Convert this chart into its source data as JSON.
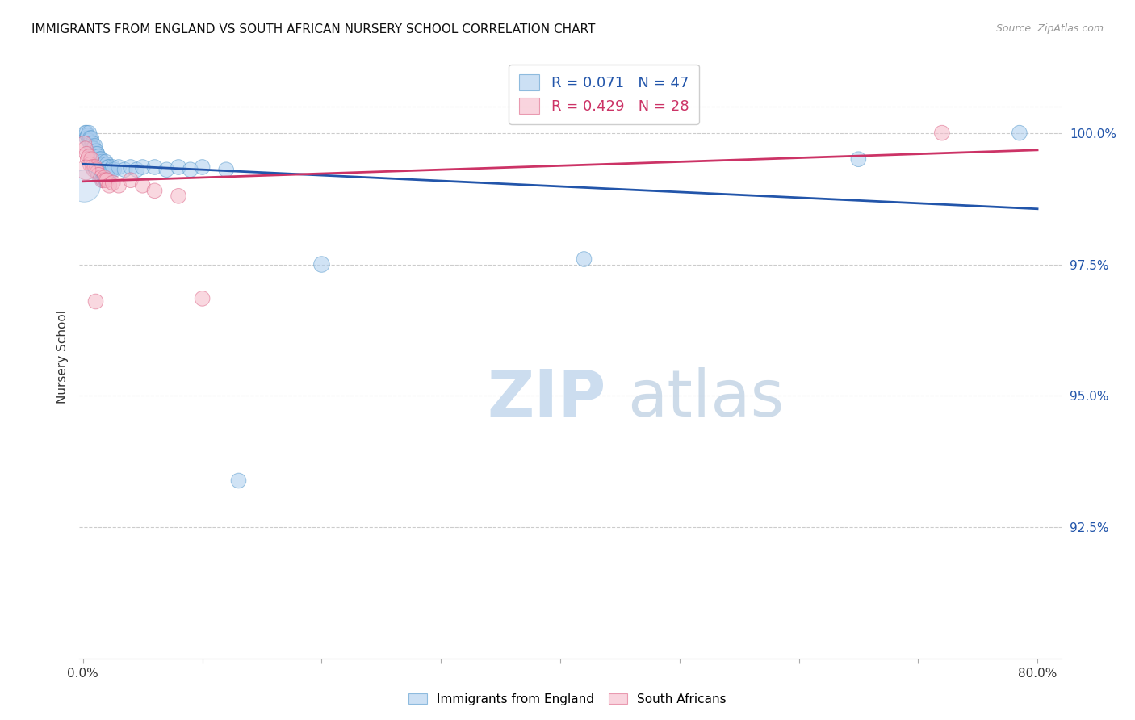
{
  "title": "IMMIGRANTS FROM ENGLAND VS SOUTH AFRICAN NURSERY SCHOOL CORRELATION CHART",
  "source": "Source: ZipAtlas.com",
  "ylabel": "Nursery School",
  "xlim": [
    -0.003,
    0.82
  ],
  "ylim": [
    90.0,
    101.5
  ],
  "yticks": [
    92.5,
    95.0,
    97.5,
    100.0
  ],
  "ytick_labels": [
    "92.5%",
    "95.0%",
    "97.5%",
    "100.0%"
  ],
  "xticks": [
    0.0,
    0.1,
    0.2,
    0.3,
    0.4,
    0.5,
    0.6,
    0.7,
    0.8
  ],
  "xtick_labels": [
    "0.0%",
    "",
    "",
    "",
    "",
    "",
    "",
    "",
    "80.0%"
  ],
  "blue_color": "#aaccee",
  "pink_color": "#f5b8c8",
  "blue_edge_color": "#5599cc",
  "pink_edge_color": "#dd6688",
  "blue_line_color": "#2255aa",
  "pink_line_color": "#cc3366",
  "blue_R": "0.071",
  "blue_N": "47",
  "pink_R": "0.429",
  "pink_N": "28",
  "grid_color": "#cccccc",
  "background_color": "#ffffff",
  "watermark_zip": "#ccddef",
  "watermark_atlas": "#b8cce0",
  "blue_x": [
    0.002,
    0.003,
    0.003,
    0.004,
    0.005,
    0.005,
    0.006,
    0.006,
    0.007,
    0.007,
    0.008,
    0.008,
    0.009,
    0.01,
    0.01,
    0.011,
    0.012,
    0.013,
    0.014,
    0.015,
    0.016,
    0.017,
    0.018,
    0.019,
    0.02,
    0.021,
    0.022,
    0.023,
    0.024,
    0.025,
    0.026,
    0.03,
    0.035,
    0.04,
    0.045,
    0.05,
    0.06,
    0.07,
    0.08,
    0.09,
    0.1,
    0.12,
    0.2,
    0.42,
    0.65,
    0.785
  ],
  "blue_y": [
    100.0,
    100.0,
    99.9,
    99.95,
    100.0,
    99.85,
    99.9,
    99.8,
    99.9,
    99.75,
    99.8,
    99.7,
    99.7,
    99.75,
    99.6,
    99.65,
    99.6,
    99.55,
    99.5,
    99.5,
    99.45,
    99.4,
    99.4,
    99.45,
    99.4,
    99.35,
    99.35,
    99.3,
    99.3,
    99.35,
    99.3,
    99.35,
    99.3,
    99.35,
    99.3,
    99.35,
    99.35,
    99.3,
    99.35,
    99.3,
    99.35,
    99.3,
    97.5,
    97.6,
    99.5,
    100.0
  ],
  "blue_sizes": [
    20,
    20,
    20,
    20,
    20,
    20,
    20,
    20,
    20,
    20,
    20,
    20,
    20,
    20,
    20,
    20,
    20,
    20,
    20,
    20,
    20,
    20,
    20,
    20,
    20,
    20,
    20,
    20,
    20,
    20,
    20,
    20,
    20,
    20,
    20,
    20,
    20,
    20,
    20,
    20,
    20,
    20,
    22,
    20,
    20,
    20
  ],
  "blue_large_x": [
    0.001
  ],
  "blue_large_y": [
    99.0
  ],
  "blue_large_size": [
    90
  ],
  "blue_outlier_x": [
    0.13
  ],
  "blue_outlier_y": [
    93.4
  ],
  "blue_outlier_size": [
    20
  ],
  "pink_x": [
    0.001,
    0.002,
    0.003,
    0.004,
    0.005,
    0.006,
    0.007,
    0.008,
    0.009,
    0.01,
    0.011,
    0.012,
    0.013,
    0.015,
    0.016,
    0.017,
    0.018,
    0.019,
    0.02,
    0.022,
    0.025,
    0.03,
    0.04,
    0.05,
    0.06,
    0.08,
    0.1,
    0.72
  ],
  "pink_y": [
    99.8,
    99.7,
    99.6,
    99.5,
    99.55,
    99.4,
    99.5,
    99.35,
    99.3,
    99.35,
    99.3,
    99.25,
    99.2,
    99.15,
    99.1,
    99.1,
    99.15,
    99.1,
    99.1,
    99.0,
    99.05,
    99.0,
    99.1,
    99.0,
    98.9,
    98.8,
    96.85,
    100.0
  ],
  "pink_sizes": [
    20,
    20,
    20,
    20,
    20,
    20,
    20,
    20,
    20,
    20,
    20,
    20,
    20,
    20,
    20,
    20,
    20,
    20,
    20,
    20,
    20,
    20,
    20,
    20,
    20,
    20,
    20,
    20
  ],
  "pink_outlier_x": [
    0.01
  ],
  "pink_outlier_y": [
    96.8
  ],
  "pink_outlier_size": [
    20
  ],
  "pink_large_x": [
    0.002
  ],
  "pink_large_y": [
    99.3
  ],
  "pink_large_size": [
    35
  ]
}
